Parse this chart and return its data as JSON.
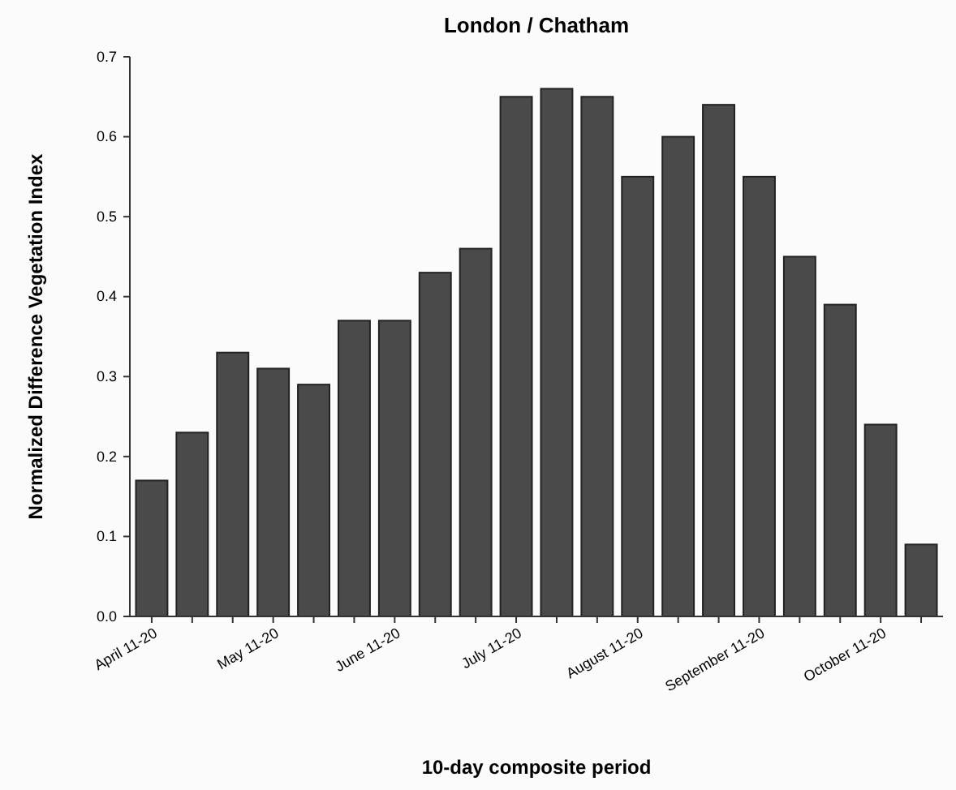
{
  "chart_data": {
    "type": "bar",
    "title": "London / Chatham",
    "xlabel": "10-day composite period",
    "ylabel": "Normalized Difference Vegetation Index",
    "categories": [
      "April 11-20",
      null,
      null,
      "May 11-20",
      null,
      null,
      "June 11-20",
      null,
      null,
      "July 11-20",
      null,
      null,
      "August 11-20",
      null,
      null,
      "September 11-20",
      null,
      null,
      "October 11-20",
      null
    ],
    "values": [
      0.17,
      0.23,
      0.33,
      0.31,
      0.29,
      0.37,
      0.37,
      0.43,
      0.46,
      0.65,
      0.66,
      0.65,
      0.55,
      0.6,
      0.64,
      0.55,
      0.45,
      0.39,
      0.24,
      0.09
    ],
    "color": "#4a4a4a",
    "ylim": [
      0,
      0.7
    ],
    "yticks": [
      {
        "value": 0,
        "label": "0.0"
      },
      {
        "value": 0.1,
        "label": "0.1"
      },
      {
        "value": 0.2,
        "label": "0.2"
      },
      {
        "value": 0.3,
        "label": "0.3"
      },
      {
        "value": 0.4,
        "label": "0.4"
      },
      {
        "value": 0.5,
        "label": "0.5"
      },
      {
        "value": 0.6,
        "label": "0.6"
      },
      {
        "value": 0.7,
        "label": "0.7"
      }
    ]
  }
}
